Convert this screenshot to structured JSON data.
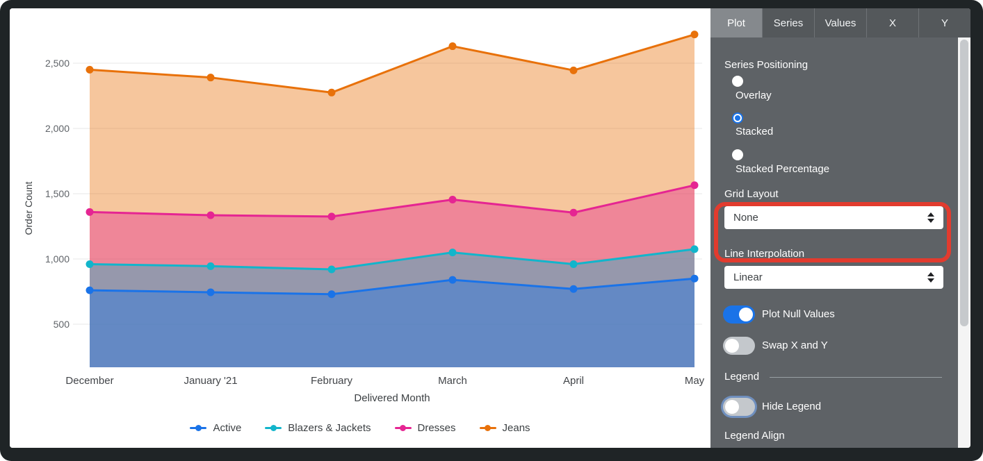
{
  "chart_data": {
    "type": "area",
    "positioning": "stacked",
    "title": "",
    "xlabel": "Delivered Month",
    "ylabel": "Order Count",
    "x": [
      "December",
      "January '21",
      "February",
      "March",
      "April",
      "May"
    ],
    "series": [
      {
        "name": "Active",
        "color": "#1a73e8",
        "values": [
          760,
          745,
          730,
          840,
          770,
          850
        ]
      },
      {
        "name": "Blazers & Jackets",
        "color": "#12b5cb",
        "values": [
          200,
          200,
          190,
          210,
          190,
          225
        ]
      },
      {
        "name": "Dresses",
        "color": "#e52592",
        "values": [
          400,
          390,
          405,
          405,
          395,
          490
        ]
      },
      {
        "name": "Jeans",
        "color": "#e8710a",
        "values": [
          1090,
          1055,
          950,
          1175,
          1090,
          1155
        ]
      }
    ],
    "stacked_totals": {
      "Active": [
        760,
        745,
        730,
        840,
        770,
        850
      ],
      "Blazers & Jackets": [
        960,
        945,
        920,
        1050,
        960,
        1075
      ],
      "Dresses": [
        1360,
        1335,
        1325,
        1455,
        1355,
        1565
      ],
      "Jeans": [
        2450,
        2390,
        2275,
        2630,
        2445,
        2720
      ]
    },
    "yticks": [
      500,
      1000,
      1500,
      2000,
      2500
    ],
    "grid": true,
    "fill_opacity": 0.4,
    "legend_position": "bottom"
  },
  "panel": {
    "tabs": [
      {
        "label": "Plot",
        "active": true
      },
      {
        "label": "Series",
        "active": false
      },
      {
        "label": "Values",
        "active": false
      },
      {
        "label": "X",
        "active": false
      },
      {
        "label": "Y",
        "active": false
      }
    ],
    "series_positioning": {
      "label": "Series Positioning",
      "options": [
        {
          "label": "Overlay",
          "selected": false
        },
        {
          "label": "Stacked",
          "selected": true
        },
        {
          "label": "Stacked Percentage",
          "selected": false
        }
      ]
    },
    "grid_layout": {
      "label": "Grid Layout",
      "value": "None",
      "highlighted": true
    },
    "line_interpolation": {
      "label": "Line Interpolation",
      "value": "Linear"
    },
    "plot_null_values": {
      "label": "Plot Null Values",
      "on": true
    },
    "swap_x_y": {
      "label": "Swap X and Y",
      "on": false
    },
    "legend": {
      "heading": "Legend",
      "hide_legend_label": "Hide Legend",
      "hide_legend_on": false,
      "align_label": "Legend Align"
    },
    "highlight_color": "#e23b2e"
  }
}
